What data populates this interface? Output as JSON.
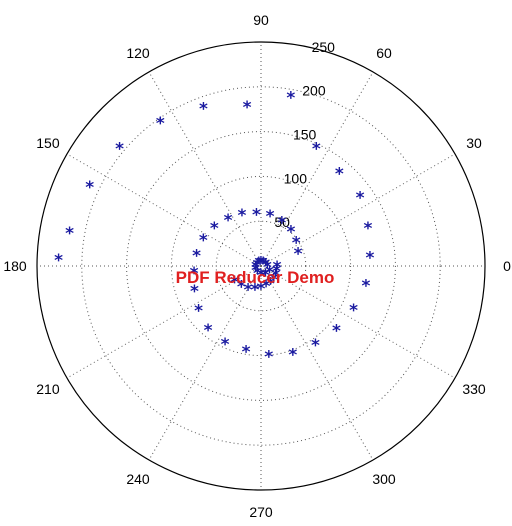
{
  "watermark": "PDF Reducer Demo",
  "chart_data": {
    "type": "polar-scatter",
    "marker": "*",
    "marker_color": "#1a1aa0",
    "watermark_color": "#e02020",
    "angle_ticks": [
      0,
      30,
      60,
      90,
      120,
      150,
      180,
      210,
      240,
      270,
      300,
      330
    ],
    "angle_labels": [
      "0",
      "30",
      "60",
      "90",
      "120",
      "150",
      "180",
      "210",
      "240",
      "270",
      "300",
      "330"
    ],
    "r_ticks": [
      50,
      100,
      150,
      200,
      250
    ],
    "r_labels": [
      "50",
      "100",
      "150",
      "200",
      "250"
    ],
    "r_max": 250,
    "grid": true,
    "series": [
      {
        "points": [
          {
            "theta": 0,
            "r": 7
          },
          {
            "theta": 30,
            "r": 6
          },
          {
            "theta": 60,
            "r": 5
          },
          {
            "theta": 90,
            "r": 5
          },
          {
            "theta": 120,
            "r": 5
          },
          {
            "theta": 150,
            "r": 5
          },
          {
            "theta": 180,
            "r": 6
          },
          {
            "theta": 210,
            "r": 7
          },
          {
            "theta": 240,
            "r": 8
          },
          {
            "theta": 270,
            "r": 9
          },
          {
            "theta": 300,
            "r": 10
          },
          {
            "theta": 330,
            "r": 11
          },
          {
            "theta": 0,
            "r": 18
          },
          {
            "theta": 345,
            "r": 18
          },
          {
            "theta": 330,
            "r": 19
          },
          {
            "theta": 315,
            "r": 20
          },
          {
            "theta": 300,
            "r": 21
          },
          {
            "theta": 285,
            "r": 22
          },
          {
            "theta": 270,
            "r": 24
          },
          {
            "theta": 255,
            "r": 26
          },
          {
            "theta": 240,
            "r": 29
          },
          {
            "theta": 225,
            "r": 31
          },
          {
            "theta": 210,
            "r": 34
          },
          {
            "theta": 20,
            "r": 44
          },
          {
            "theta": 35,
            "r": 48
          },
          {
            "theta": 50,
            "r": 52
          },
          {
            "theta": 65,
            "r": 55
          },
          {
            "theta": 80,
            "r": 58
          },
          {
            "theta": 95,
            "r": 59
          },
          {
            "theta": 110,
            "r": 62
          },
          {
            "theta": 125,
            "r": 64
          },
          {
            "theta": 140,
            "r": 68
          },
          {
            "theta": 155,
            "r": 71
          },
          {
            "theta": 170,
            "r": 73
          },
          {
            "theta": 185,
            "r": 75
          },
          {
            "theta": 200,
            "r": 79
          },
          {
            "theta": 215,
            "r": 85
          },
          {
            "theta": 230,
            "r": 92
          },
          {
            "theta": 245,
            "r": 95
          },
          {
            "theta": 260,
            "r": 96
          },
          {
            "theta": 275,
            "r": 100
          },
          {
            "theta": 290,
            "r": 104
          },
          {
            "theta": 305,
            "r": 106
          },
          {
            "theta": 320,
            "r": 110
          },
          {
            "theta": 335,
            "r": 114
          },
          {
            "theta": 350,
            "r": 119
          },
          {
            "theta": 5,
            "r": 122
          },
          {
            "theta": 20,
            "r": 127
          },
          {
            "theta": 35,
            "r": 135
          },
          {
            "theta": 50,
            "r": 136
          },
          {
            "theta": 65,
            "r": 146
          },
          {
            "theta": 80,
            "r": 192
          },
          {
            "theta": 95,
            "r": 179
          },
          {
            "theta": 110,
            "r": 188
          },
          {
            "theta": 125,
            "r": 196
          },
          {
            "theta": 140,
            "r": 206
          },
          {
            "theta": 155,
            "r": 211
          },
          {
            "theta": 170,
            "r": 217
          },
          {
            "theta": 178,
            "r": 226
          }
        ]
      }
    ]
  }
}
